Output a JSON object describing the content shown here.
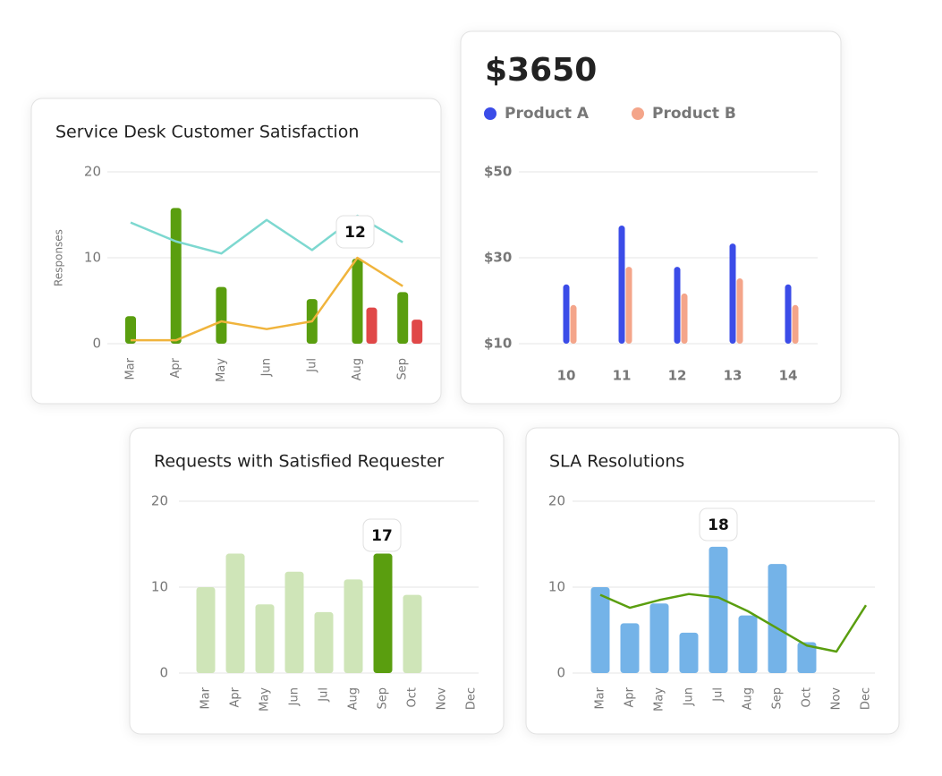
{
  "chart_data": [
    {
      "type": "bar",
      "title": "Service Desk Customer Satisfaction",
      "y_label": "Responses",
      "categories": [
        "Mar",
        "Apr",
        "May",
        "Jun",
        "Jul",
        "Aug",
        "Sep"
      ],
      "series": [
        {
          "type": "bar",
          "color": "#5a9e0f",
          "values": [
            3.2,
            15.8,
            6.6,
            null,
            5.2,
            9.9,
            6.0
          ]
        },
        {
          "type": "bar",
          "color": "#e04848",
          "values": [
            null,
            null,
            null,
            null,
            null,
            4.2,
            2.8
          ]
        },
        {
          "type": "line",
          "color": "#7dd8d0",
          "values": [
            14.1,
            11.9,
            10.5,
            14.4,
            10.9,
            14.9,
            11.8
          ]
        },
        {
          "type": "line",
          "color": "#f0b43c",
          "values": [
            0.4,
            0.4,
            2.6,
            1.7,
            2.6,
            10,
            6.7
          ]
        }
      ],
      "annotation": "12",
      "ylim": [
        0,
        20
      ],
      "yticks": [
        0,
        10,
        20
      ],
      "grid": true
    },
    {
      "type": "bar",
      "title": "$3650",
      "categories": [
        "10",
        "11",
        "12",
        "13",
        "14"
      ],
      "series": [
        {
          "name": "Product A",
          "type": "bar",
          "color": "#3b4ce8",
          "values": [
            23.8,
            37.5,
            27.9,
            33.3,
            23.8
          ]
        },
        {
          "name": "Product B",
          "type": "bar",
          "color": "#f4a58a",
          "values": [
            19.0,
            27.9,
            21.7,
            25.2,
            19.0
          ]
        }
      ],
      "ylim": [
        10,
        50
      ],
      "yticks": [
        {
          "value": 10,
          "label": "$10"
        },
        {
          "value": 30,
          "label": "$30"
        },
        {
          "value": 50,
          "label": "$50"
        }
      ],
      "grid": true
    },
    {
      "type": "bar",
      "title": "Requests with Satisfied Requester",
      "categories": [
        "Mar",
        "Apr",
        "May",
        "Jun",
        "Jul",
        "Aug",
        "Sep",
        "Oct",
        "Nov",
        "Dec"
      ],
      "values": [
        10,
        13.9,
        8,
        11.8,
        7.1,
        10.9,
        13.9,
        9.1,
        null,
        null
      ],
      "colors": [
        "#cfe5b8",
        "#cfe5b8",
        "#cfe5b8",
        "#cfe5b8",
        "#cfe5b8",
        "#cfe5b8",
        "#5a9e0f",
        "#cfe5b8",
        "#cfe5b8",
        "#cfe5b8"
      ],
      "annotation": "17",
      "ylim": [
        0,
        20
      ],
      "yticks": [
        0,
        10,
        20
      ],
      "grid": true
    },
    {
      "type": "bar",
      "title": "SLA Resolutions",
      "categories": [
        "Mar",
        "Apr",
        "May",
        "Jun",
        "Jul",
        "Aug",
        "Sep",
        "Oct",
        "Nov",
        "Dec"
      ],
      "series": [
        {
          "type": "bar",
          "color": "#74b3e8",
          "values": [
            10,
            5.8,
            8.1,
            4.7,
            14.7,
            6.7,
            12.7,
            3.6,
            null,
            null
          ]
        },
        {
          "type": "line",
          "color": "#5a9e0f",
          "values": [
            9.1,
            7.6,
            8.5,
            9.2,
            8.8,
            7.2,
            5.2,
            3.2,
            2.5,
            7.9
          ]
        }
      ],
      "annotation": "18",
      "ylim": [
        0,
        20
      ],
      "yticks": [
        0,
        10,
        20
      ],
      "grid": true
    }
  ]
}
